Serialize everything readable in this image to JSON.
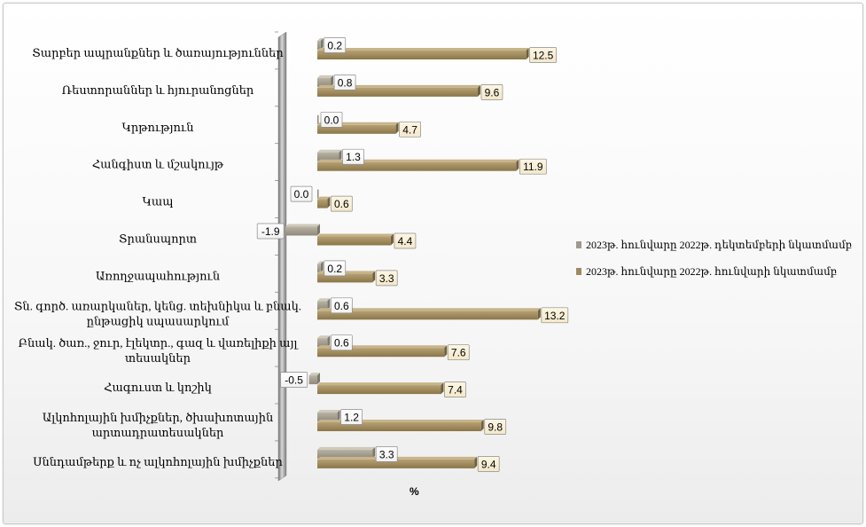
{
  "chart_data": {
    "type": "bar",
    "orientation": "horizontal",
    "xlabel": "%",
    "xlim": [
      -2,
      14
    ],
    "grid": false,
    "legend_position": "right",
    "categories": [
      "Տարբեր ապրանքներ և ծառայություններ",
      "Ռեստորաններ և հյուրանոցներ",
      "Կրթություն",
      "Հանգիստ և մշակույթ",
      "Կապ",
      "Տրանսպորտ",
      "Առողջապահություն",
      "Տն. գործ. առարկաներ, կենց. տեխնիկա և բնակ. ընթացիկ սպասարկում",
      "Բնակ. ծառ., ջուր, էլեկտր., գազ և վառելիքի այլ տեսակներ",
      "Հագուստ և կոշիկ",
      "Ալկոհոլային խմիչքներ, ծխախոտային արտադրատեսակներ",
      "Սննդամթերք և ոչ ալկոհոլային խմիչքներ"
    ],
    "category_lines": [
      [
        "Տարբեր ապրանքներ և ծառայություններ"
      ],
      [
        "Ռեստորաններ և հյուրանոցներ"
      ],
      [
        "Կրթություն"
      ],
      [
        "Հանգիստ և մշակույթ"
      ],
      [
        "Կապ"
      ],
      [
        "Տրանսպորտ"
      ],
      [
        "Առողջապահություն"
      ],
      [
        "Տն. գործ. առարկաներ, կենց. տեխնիկա և բնակ.",
        "ընթացիկ սպասարկում"
      ],
      [
        "Բնակ. ծառ., ջուր, էլեկտր., գազ և վառելիքի այլ",
        "տեսակներ"
      ],
      [
        "Հագուստ և կոշիկ"
      ],
      [
        "Ալկոհոլային խմիչքներ, ծխախոտային",
        "արտադրատեսակներ"
      ],
      [
        "Սննդամթերք և ոչ ալկոհոլային խմիչքներ"
      ]
    ],
    "series": [
      {
        "name": "2023թ. հունվարը 2022թ. դեկտեմբերի նկատմամբ",
        "color": "#a09a8c",
        "values": [
          0.2,
          0.8,
          0.0,
          1.3,
          0.0,
          -1.9,
          0.2,
          0.6,
          0.6,
          -0.5,
          1.2,
          3.3
        ],
        "labels": [
          "0.2",
          "0.8",
          "0.0",
          "1.3",
          "0.0",
          "-1.9",
          "0.2",
          "0.6",
          "0.6",
          "-0.5",
          "1.2",
          "3.3"
        ]
      },
      {
        "name": "2023թ. հունվարը 2022թ. հունվարի նկատմամբ",
        "color": "#9e8a5c",
        "values": [
          12.5,
          9.6,
          4.7,
          11.9,
          0.6,
          4.4,
          3.3,
          13.2,
          7.6,
          7.4,
          9.8,
          9.4
        ],
        "labels": [
          "12.5",
          "9.6",
          "4.7",
          "11.9",
          "0.6",
          "4.4",
          "3.3",
          "13.2",
          "7.6",
          "7.4",
          "9.8",
          "9.4"
        ]
      }
    ]
  }
}
